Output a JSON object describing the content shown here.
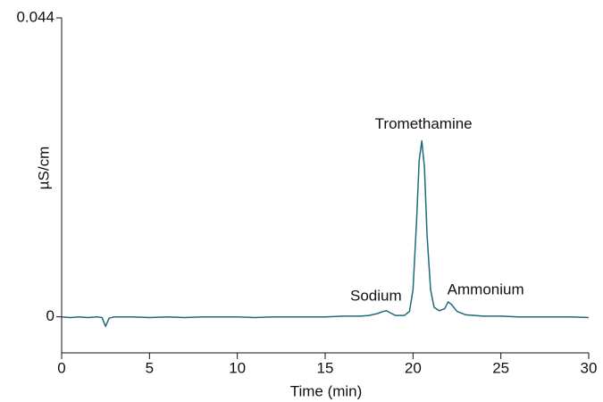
{
  "chart_data": {
    "type": "line",
    "xlabel": "Time (min)",
    "ylabel": "µS/cm",
    "xlim": [
      0,
      30
    ],
    "xticks": [
      0,
      5,
      10,
      15,
      20,
      25,
      30
    ],
    "ylim": [
      -0.0053,
      0.044
    ],
    "yticks": [
      0,
      0.044
    ],
    "series": [
      {
        "color": "#1f6b7c",
        "x": [
          0,
          0.5,
          1,
          1.5,
          2,
          2.3,
          2.5,
          2.7,
          3,
          4,
          5,
          6,
          7,
          8,
          9,
          10,
          11,
          12,
          13,
          14,
          15,
          16,
          17,
          17.5,
          18,
          18.3,
          18.5,
          18.7,
          19,
          19.5,
          19.8,
          20,
          20.2,
          20.35,
          20.5,
          20.65,
          20.8,
          21,
          21.2,
          21.5,
          21.8,
          22,
          22.2,
          22.5,
          23,
          24,
          25,
          26,
          27,
          28,
          29,
          30
        ],
        "values": [
          0,
          -0.0001,
          0,
          -0.0001,
          0,
          -0.0001,
          -0.0014,
          -0.0002,
          0,
          0,
          -0.0001,
          0,
          -0.0001,
          0,
          0,
          0,
          -0.0001,
          0,
          0,
          0,
          0,
          0.0001,
          0.0001,
          0.0002,
          0.0005,
          0.0008,
          0.0009,
          0.0006,
          0.0002,
          0.0002,
          0.0008,
          0.004,
          0.014,
          0.023,
          0.0259,
          0.022,
          0.012,
          0.004,
          0.0014,
          0.0009,
          0.0012,
          0.0022,
          0.0018,
          0.0008,
          0.0003,
          0.0001,
          0.0001,
          0,
          0,
          0,
          0,
          -0.0001
        ]
      }
    ],
    "annotations": [
      {
        "text": "Sodium",
        "x": 18.5,
        "y": 0.0009
      },
      {
        "text": "Tromethamine",
        "x": 20.5,
        "y": 0.0259
      },
      {
        "text": "Ammonium",
        "x": 22,
        "y": 0.0022
      }
    ]
  }
}
